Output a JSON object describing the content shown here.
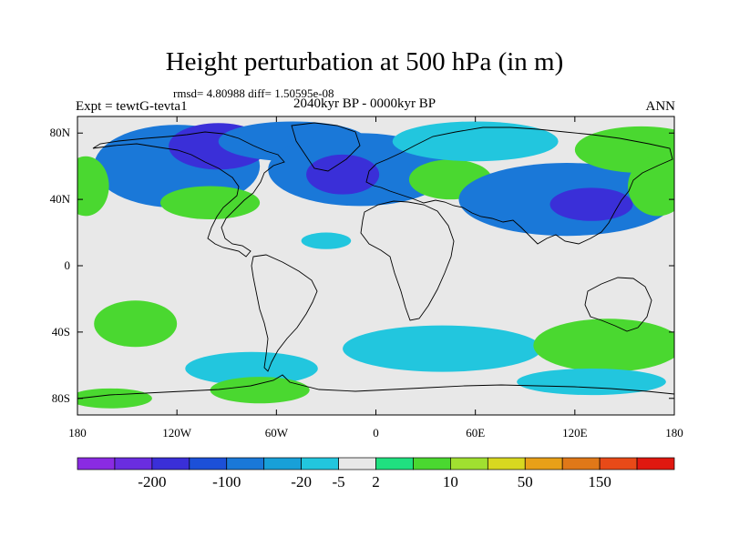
{
  "title": "Height perturbation at 500 hPa (in m)",
  "stats_line": "rmsd= 4.80988  diff= 1.50595e-08",
  "experiment_label": "Expt = tewtG-tevta1",
  "period_label": "2040kyr BP - 0000kyr BP",
  "season_label": "ANN",
  "map": {
    "projection": "cylindrical-equidistant",
    "lon_range": [
      -180,
      180
    ],
    "lat_range": [
      -90,
      90
    ],
    "background_color": "#e8e8e8",
    "coastline_color": "#000000",
    "lat_ticks": [
      {
        "value": 80,
        "label": "80N"
      },
      {
        "value": 40,
        "label": "40N"
      },
      {
        "value": 0,
        "label": "0"
      },
      {
        "value": -40,
        "label": "40S"
      },
      {
        "value": -80,
        "label": "80S"
      }
    ],
    "lon_ticks": [
      {
        "value": -180,
        "label": "180"
      },
      {
        "value": -120,
        "label": "120W"
      },
      {
        "value": -60,
        "label": "60W"
      },
      {
        "value": 0,
        "label": "0"
      },
      {
        "value": 60,
        "label": "60E"
      },
      {
        "value": 120,
        "label": "120E"
      },
      {
        "value": 180,
        "label": "180"
      }
    ],
    "field_blobs": [
      {
        "lon": -120,
        "lat": 60,
        "rx": 50,
        "ry": 25,
        "level": -20
      },
      {
        "lon": -95,
        "lat": 72,
        "rx": 30,
        "ry": 14,
        "level": -100
      },
      {
        "lon": -50,
        "lat": 75,
        "rx": 45,
        "ry": 12,
        "level": -20
      },
      {
        "lon": -10,
        "lat": 58,
        "rx": 55,
        "ry": 22,
        "level": -20
      },
      {
        "lon": -20,
        "lat": 55,
        "rx": 22,
        "ry": 12,
        "level": -100
      },
      {
        "lon": 45,
        "lat": 52,
        "rx": 25,
        "ry": 12,
        "level": 10
      },
      {
        "lon": 60,
        "lat": 75,
        "rx": 50,
        "ry": 12,
        "level": -5
      },
      {
        "lon": 115,
        "lat": 40,
        "rx": 65,
        "ry": 22,
        "level": -20
      },
      {
        "lon": 130,
        "lat": 37,
        "rx": 25,
        "ry": 10,
        "level": -100
      },
      {
        "lon": 160,
        "lat": 70,
        "rx": 40,
        "ry": 14,
        "level": 10
      },
      {
        "lon": 170,
        "lat": 48,
        "rx": 18,
        "ry": 18,
        "level": 10
      },
      {
        "lon": -175,
        "lat": 48,
        "rx": 14,
        "ry": 18,
        "level": 10
      },
      {
        "lon": -100,
        "lat": 38,
        "rx": 30,
        "ry": 10,
        "level": 10
      },
      {
        "lon": -30,
        "lat": 15,
        "rx": 15,
        "ry": 5,
        "level": -5
      },
      {
        "lon": -145,
        "lat": -35,
        "rx": 25,
        "ry": 14,
        "level": 10
      },
      {
        "lon": -75,
        "lat": -62,
        "rx": 40,
        "ry": 10,
        "level": -5
      },
      {
        "lon": -70,
        "lat": -75,
        "rx": 30,
        "ry": 8,
        "level": 10
      },
      {
        "lon": 40,
        "lat": -50,
        "rx": 60,
        "ry": 14,
        "level": -5
      },
      {
        "lon": 140,
        "lat": -48,
        "rx": 45,
        "ry": 16,
        "level": 10
      },
      {
        "lon": 130,
        "lat": -70,
        "rx": 45,
        "ry": 8,
        "level": -5
      },
      {
        "lon": -160,
        "lat": -80,
        "rx": 25,
        "ry": 6,
        "level": 10
      }
    ]
  },
  "colorbar": {
    "colors": [
      "#8a2be2",
      "#6a2de0",
      "#3a2fd8",
      "#1c50d8",
      "#1a78d8",
      "#18a0d8",
      "#22c6de",
      "#e8e8e8",
      "#20e080",
      "#4ad830",
      "#a0e030",
      "#d8d820",
      "#e8a018",
      "#e07818",
      "#e84a18",
      "#e01810"
    ],
    "labels": [
      "-200",
      "-100",
      "-20",
      "-5",
      "2",
      "10",
      "50",
      "150"
    ]
  }
}
